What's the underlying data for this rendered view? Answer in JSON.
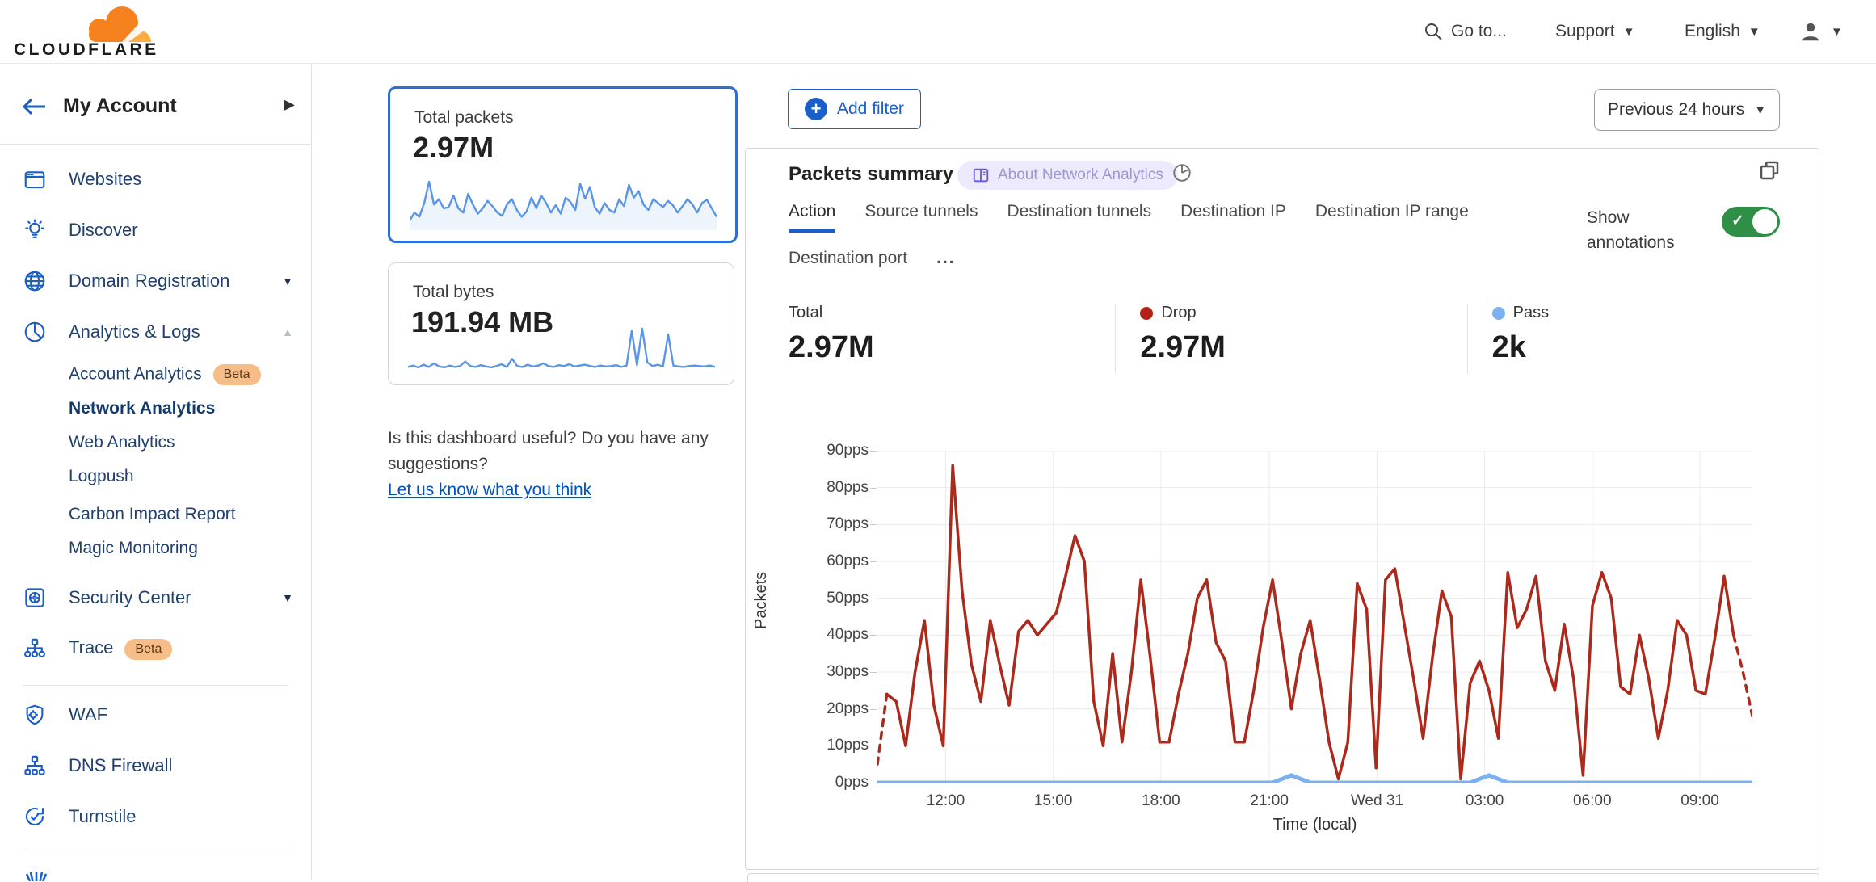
{
  "topbar": {
    "brand": "CLOUDFLARE",
    "goto": "Go to...",
    "support": "Support",
    "language": "English"
  },
  "sidebar": {
    "title": "My Account",
    "items": [
      {
        "type": "item",
        "label": "Websites",
        "icon": "websites-icon"
      },
      {
        "type": "item",
        "label": "Discover",
        "icon": "discover-icon"
      },
      {
        "type": "item",
        "label": "Domain Registration",
        "icon": "globe-icon",
        "chevron": "down"
      },
      {
        "type": "item",
        "label": "Analytics & Logs",
        "icon": "analytics-icon",
        "chevron": "up"
      },
      {
        "type": "sub",
        "label": "Account Analytics",
        "badge": "Beta"
      },
      {
        "type": "sub",
        "label": "Network Analytics",
        "selected": true
      },
      {
        "type": "sub",
        "label": "Web Analytics"
      },
      {
        "type": "sub",
        "label": "Logpush"
      },
      {
        "type": "sub",
        "label": "Carbon Impact Report"
      },
      {
        "type": "sub",
        "label": "Magic Monitoring"
      },
      {
        "type": "item",
        "label": "Security Center",
        "icon": "security-icon",
        "chevron": "down"
      },
      {
        "type": "item",
        "label": "Trace",
        "icon": "trace-icon",
        "badge": "Beta"
      },
      {
        "type": "divider"
      },
      {
        "type": "item",
        "label": "WAF",
        "icon": "waf-icon"
      },
      {
        "type": "item",
        "label": "DNS Firewall",
        "icon": "dns-icon"
      },
      {
        "type": "item",
        "label": "Turnstile",
        "icon": "turnstile-icon"
      },
      {
        "type": "divider"
      }
    ]
  },
  "summary_cards": [
    {
      "label": "Total packets",
      "value": "2.97M",
      "selected": true,
      "fill": true,
      "sparkline": [
        15,
        30,
        22,
        48,
        88,
        45,
        55,
        38,
        40,
        62,
        38,
        30,
        65,
        45,
        28,
        38,
        52,
        42,
        30,
        24,
        46,
        55,
        35,
        22,
        32,
        58,
        38,
        62,
        48,
        30,
        44,
        28,
        58,
        50,
        35,
        84,
        56,
        78,
        40,
        28,
        48,
        35,
        30,
        55,
        42,
        82,
        58,
        70,
        45,
        35,
        55,
        48,
        40,
        52,
        44,
        30,
        42,
        55,
        46,
        30,
        48,
        54,
        38,
        22
      ]
    },
    {
      "label": "Total bytes",
      "value": "191.94 MB",
      "selected": false,
      "fill": false,
      "sparkline": [
        10,
        13,
        9,
        15,
        10,
        18,
        11,
        9,
        13,
        10,
        12,
        22,
        12,
        10,
        14,
        11,
        9,
        12,
        16,
        10,
        28,
        12,
        10,
        15,
        11,
        13,
        18,
        12,
        10,
        14,
        12,
        16,
        11,
        13,
        15,
        12,
        10,
        13,
        11,
        12,
        14,
        10,
        13,
        90,
        14,
        95,
        20,
        12,
        15,
        11,
        82,
        13,
        11,
        10,
        12,
        13,
        12,
        11,
        13,
        10
      ]
    }
  ],
  "feedback": {
    "question": "Is this dashboard useful? Do you have any suggestions?",
    "link": "Let us know what you think"
  },
  "filters": {
    "add_filter": "Add filter",
    "time_range": "Previous 24 hours"
  },
  "panel": {
    "title": "Packets summary",
    "about_badge": "About Network Analytics",
    "tabs": [
      {
        "label": "Action",
        "active": true
      },
      {
        "label": "Source tunnels"
      },
      {
        "label": "Destination tunnels"
      },
      {
        "label": "Destination IP"
      },
      {
        "label": "Destination IP range"
      },
      {
        "label": "Destination port"
      },
      {
        "label": "...",
        "more": true
      }
    ],
    "show_annotations": "Show annotations",
    "stats": [
      {
        "label": "Total",
        "value": "2.97M",
        "dot": null
      },
      {
        "label": "Drop",
        "value": "2.97M",
        "dot": "#b32017"
      },
      {
        "label": "Pass",
        "value": "2k",
        "dot": "#7cb0ee"
      }
    ]
  },
  "chart_data": {
    "type": "line",
    "title": "Packets summary",
    "xlabel": "Time (local)",
    "ylabel": "Packets",
    "ylim": [
      0,
      90
    ],
    "y_tick_labels": [
      "90pps",
      "80pps",
      "70pps",
      "60pps",
      "50pps",
      "40pps",
      "30pps",
      "20pps",
      "10pps",
      "0pps"
    ],
    "x_ticks": [
      {
        "label": "12:00",
        "f": 0.078
      },
      {
        "label": "15:00",
        "f": 0.201
      },
      {
        "label": "18:00",
        "f": 0.324
      },
      {
        "label": "21:00",
        "f": 0.448
      },
      {
        "label": "Wed 31",
        "f": 0.571
      },
      {
        "label": "03:00",
        "f": 0.694
      },
      {
        "label": "06:00",
        "f": 0.817
      },
      {
        "label": "09:00",
        "f": 0.94
      }
    ],
    "grid": true,
    "series": [
      {
        "name": "Drop",
        "color": "#ab2a1c",
        "dashed_head": 1,
        "dashed_tail": 2,
        "values": [
          5,
          24,
          22,
          10,
          30,
          44,
          21,
          10,
          86,
          52,
          32,
          22,
          44,
          32,
          21,
          41,
          44,
          40,
          43,
          46,
          56,
          67,
          60,
          22,
          10,
          35,
          11,
          30,
          55,
          34,
          11,
          11,
          24,
          35,
          50,
          55,
          38,
          33,
          11,
          11,
          25,
          42,
          55,
          38,
          20,
          35,
          44,
          28,
          11,
          1,
          11,
          54,
          47,
          4,
          55,
          58,
          43,
          28,
          12,
          34,
          52,
          45,
          1,
          27,
          33,
          25,
          12,
          57,
          42,
          47,
          56,
          33,
          25,
          43,
          28,
          2,
          48,
          57,
          50,
          26,
          24,
          40,
          28,
          12,
          25,
          44,
          40,
          25,
          24,
          39,
          56,
          40,
          30,
          18
        ]
      },
      {
        "name": "Pass",
        "color": "#7cb0ee",
        "dashed_head": 0,
        "dashed_tail": 0,
        "values": [
          0,
          0,
          0,
          0,
          0,
          0,
          0,
          0,
          0,
          0,
          0,
          0,
          0,
          0,
          0,
          0,
          0,
          0,
          0,
          0,
          0,
          0,
          0,
          0,
          0,
          0,
          0,
          0,
          0,
          0,
          0,
          0,
          0,
          0,
          0,
          0,
          0,
          0,
          0,
          0,
          0,
          0,
          0,
          1,
          2,
          1,
          0,
          0,
          0,
          0,
          0,
          0,
          0,
          0,
          0,
          0,
          0,
          0,
          0,
          0,
          0,
          0,
          0,
          0,
          1,
          2,
          1,
          0,
          0,
          0,
          0,
          0,
          0,
          0,
          0,
          0,
          0,
          0,
          0,
          0,
          0,
          0,
          0,
          0,
          0,
          0,
          0,
          0,
          0,
          0,
          0,
          0,
          0,
          0
        ]
      }
    ]
  }
}
